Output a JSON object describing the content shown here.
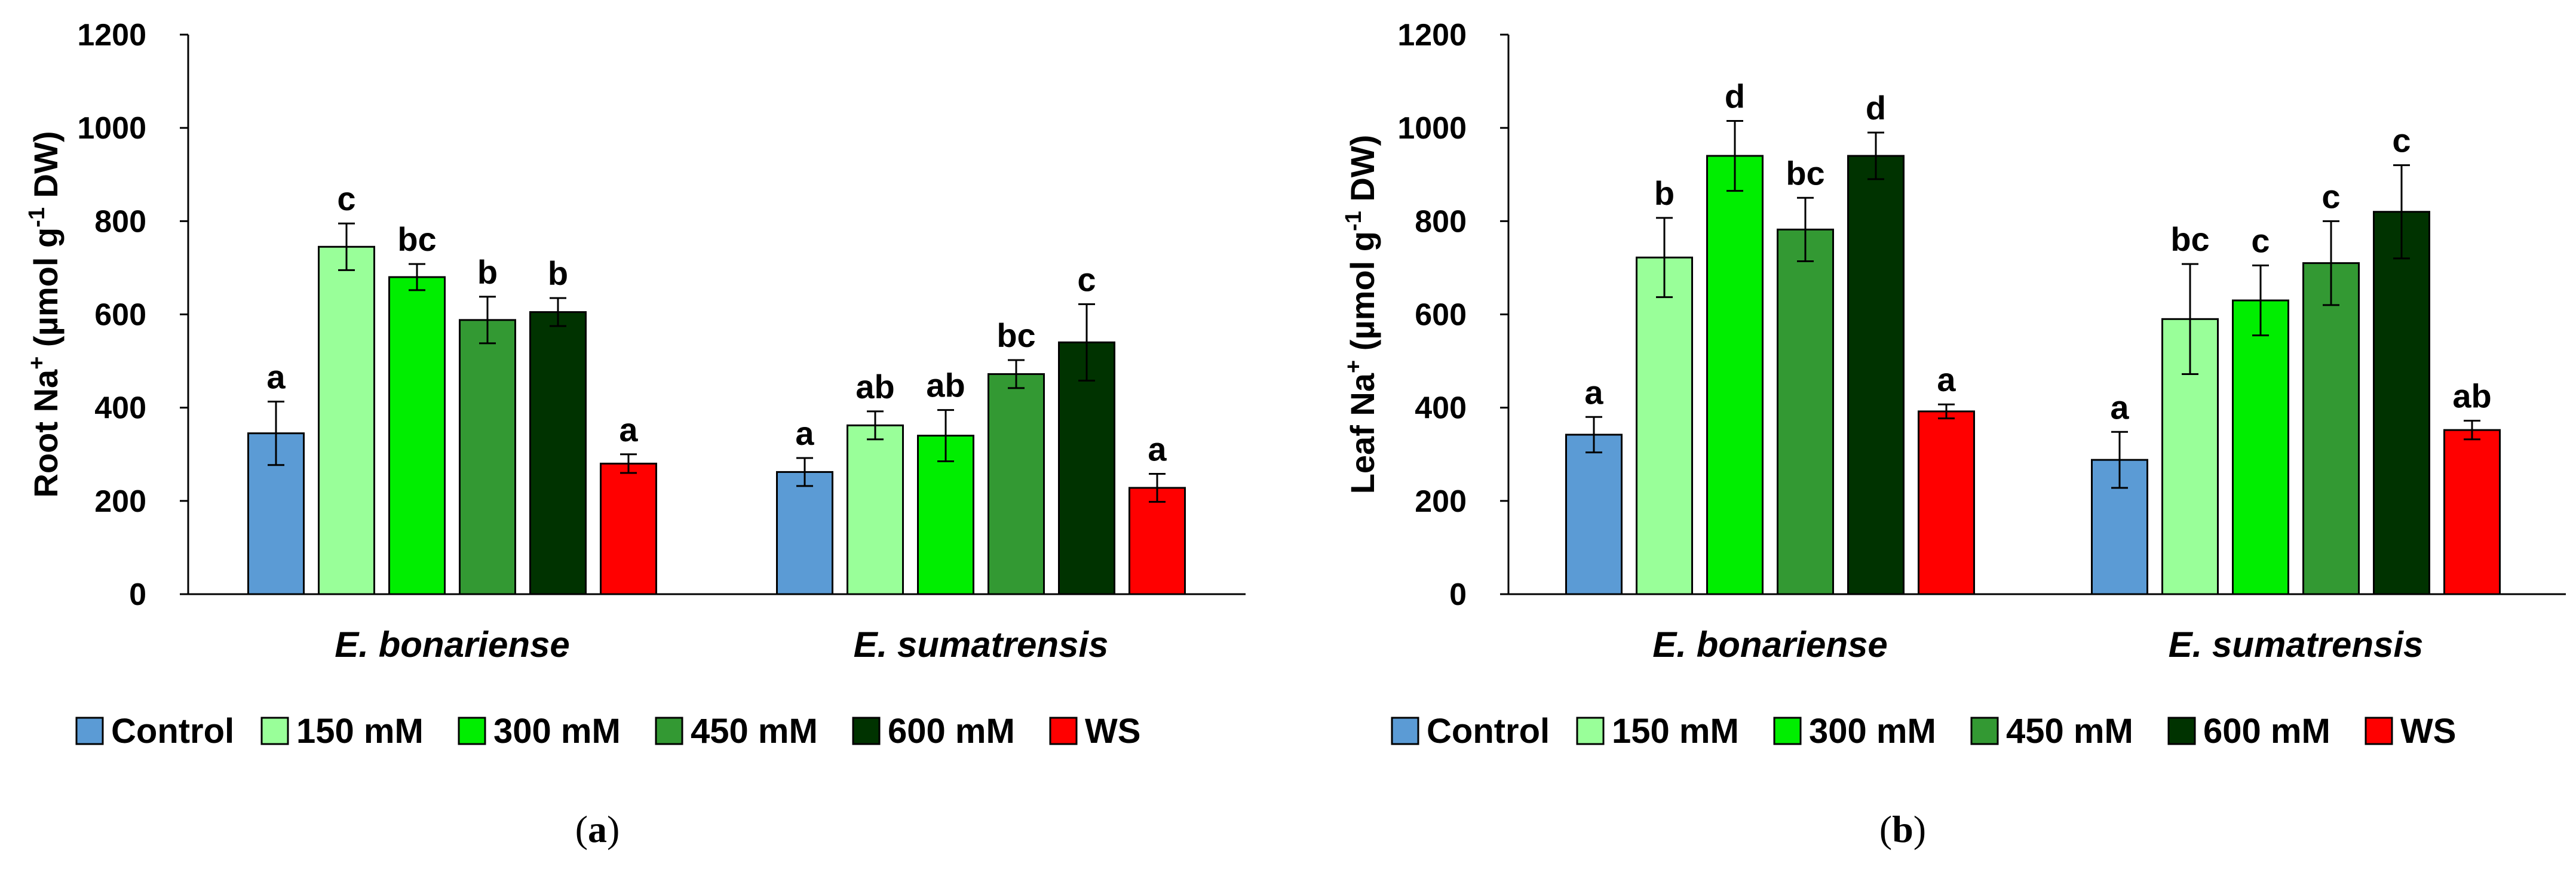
{
  "legend": [
    {
      "label": "Control",
      "color": "#5b9bd5"
    },
    {
      "label": "150 mM",
      "color": "#99ff99"
    },
    {
      "label": "300 mM",
      "color": "#00ee00"
    },
    {
      "label": "450 mM",
      "color": "#339933"
    },
    {
      "label": "600 mM",
      "color": "#003300"
    },
    {
      "label": "WS",
      "color": "#ff0000"
    }
  ],
  "chart_data": [
    {
      "type": "bar",
      "panel_label": "a",
      "ylabel_main": "Root Na",
      "ylabel_sup1": "+",
      "ylabel_mid": " (µmol g",
      "ylabel_sup2": "-1",
      "ylabel_end": " DW)",
      "ylim": [
        0,
        1200
      ],
      "yticks": [
        "0",
        "200",
        "400",
        "600",
        "800",
        "1000",
        "1200"
      ],
      "categories": [
        "E. bonariense",
        "E. sumatrensis"
      ],
      "series": [
        {
          "name": "Control",
          "values": [
            345,
            262
          ],
          "errors": [
            68,
            30
          ],
          "letters": [
            "a",
            "a"
          ]
        },
        {
          "name": "150 mM",
          "values": [
            745,
            362
          ],
          "errors": [
            50,
            30
          ],
          "letters": [
            "c",
            "ab"
          ]
        },
        {
          "name": "300 mM",
          "values": [
            680,
            340
          ],
          "errors": [
            28,
            55
          ],
          "letters": [
            "bc",
            "ab"
          ]
        },
        {
          "name": "450 mM",
          "values": [
            588,
            472
          ],
          "errors": [
            50,
            30
          ],
          "letters": [
            "b",
            "bc"
          ]
        },
        {
          "name": "600 mM",
          "values": [
            605,
            540
          ],
          "errors": [
            30,
            82
          ],
          "letters": [
            "b",
            "c"
          ]
        },
        {
          "name": "WS",
          "values": [
            280,
            228
          ],
          "errors": [
            20,
            30
          ],
          "letters": [
            "a",
            "a"
          ]
        }
      ]
    },
    {
      "type": "bar",
      "panel_label": "b",
      "ylabel_main": "Leaf Na",
      "ylabel_sup1": "+",
      "ylabel_mid": " (µmol g",
      "ylabel_sup2": "-1",
      "ylabel_end": " DW)",
      "ylim": [
        0,
        1200
      ],
      "yticks": [
        "0",
        "200",
        "400",
        "600",
        "800",
        "1000",
        "1200"
      ],
      "categories": [
        "E. bonariense",
        "E. sumatrensis"
      ],
      "series": [
        {
          "name": "Control",
          "values": [
            342,
            288
          ],
          "errors": [
            38,
            60
          ],
          "letters": [
            "a",
            "a"
          ]
        },
        {
          "name": "150 mM",
          "values": [
            722,
            590
          ],
          "errors": [
            85,
            118
          ],
          "letters": [
            "b",
            "bc"
          ]
        },
        {
          "name": "300 mM",
          "values": [
            940,
            630
          ],
          "errors": [
            75,
            75
          ],
          "letters": [
            "d",
            "c"
          ]
        },
        {
          "name": "450 mM",
          "values": [
            782,
            710
          ],
          "errors": [
            68,
            90
          ],
          "letters": [
            "bc",
            "c"
          ]
        },
        {
          "name": "600 mM",
          "values": [
            940,
            820
          ],
          "errors": [
            50,
            100
          ],
          "letters": [
            "d",
            "c"
          ]
        },
        {
          "name": "WS",
          "values": [
            392,
            352
          ],
          "errors": [
            15,
            20
          ],
          "letters": [
            "a",
            "ab"
          ]
        }
      ]
    }
  ]
}
